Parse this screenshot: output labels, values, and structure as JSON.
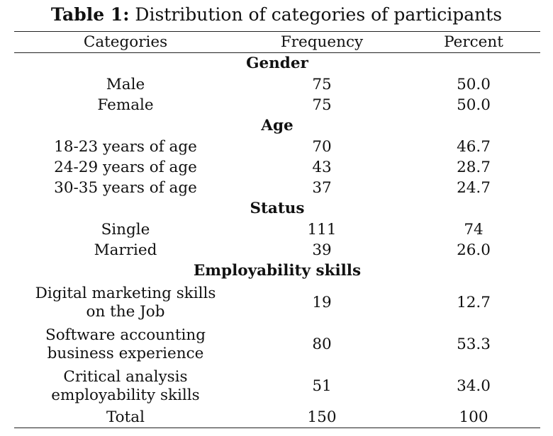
{
  "table": {
    "caption_label": "Table 1:",
    "caption_title": " Distribution of categories of participants",
    "headers": [
      "Categories",
      "Frequency",
      "Percent"
    ],
    "sections": [
      {
        "title": "Gender",
        "rows": [
          {
            "category": "Male",
            "frequency": "75",
            "percent": "50.0"
          },
          {
            "category": "Female",
            "frequency": "75",
            "percent": "50.0"
          }
        ]
      },
      {
        "title": "Age",
        "rows": [
          {
            "category": "18-23 years of age",
            "frequency": "70",
            "percent": "46.7"
          },
          {
            "category": "24-29 years of age",
            "frequency": "43",
            "percent": "28.7"
          },
          {
            "category": "30-35 years of age",
            "frequency": "37",
            "percent": "24.7"
          }
        ]
      },
      {
        "title": "Status",
        "rows": [
          {
            "category": "Single",
            "frequency": "111",
            "percent": "74"
          },
          {
            "category": "Married",
            "frequency": "39",
            "percent": "26.0"
          }
        ]
      },
      {
        "title": "Employability skills",
        "rows": [
          {
            "category_lines": [
              "Digital marketing skills",
              "on the Job"
            ],
            "frequency": "19",
            "percent": "12.7"
          },
          {
            "category_lines": [
              "Software accounting",
              "business experience"
            ],
            "frequency": "80",
            "percent": "53.3"
          },
          {
            "category_lines": [
              "Critical analysis",
              "employability skills"
            ],
            "frequency": "51",
            "percent": "34.0"
          }
        ]
      }
    ],
    "total": {
      "category": "Total",
      "frequency": "150",
      "percent": "100"
    }
  }
}
